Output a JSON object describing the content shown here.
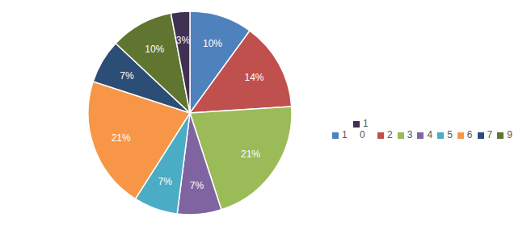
{
  "chart_data": {
    "type": "pie",
    "categories": [
      "1",
      "2",
      "3",
      "4",
      "5",
      "6",
      "7",
      "9",
      "10"
    ],
    "values": [
      10,
      14,
      21,
      7,
      7,
      21,
      7,
      10,
      3
    ],
    "value_labels": [
      "10%",
      "14%",
      "21%",
      "7%",
      "7%",
      "21%",
      "7%",
      "10%",
      "3%"
    ],
    "colors": [
      "#4f81bd",
      "#c0504d",
      "#9bbb59",
      "#8064a2",
      "#4bacc6",
      "#f79646",
      "#2c4d75",
      "#5f7530",
      "#403152"
    ],
    "data_labels": true,
    "legend": "right"
  }
}
